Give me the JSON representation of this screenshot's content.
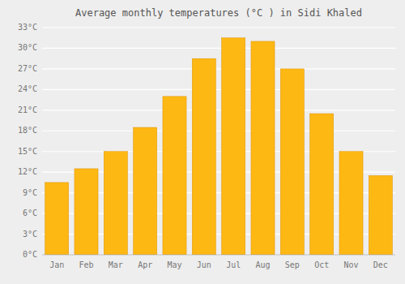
{
  "chart_data": {
    "type": "bar",
    "title": "Average monthly temperatures (°C ) in Sidi Khaled",
    "categories": [
      "Jan",
      "Feb",
      "Mar",
      "Apr",
      "May",
      "Jun",
      "Jul",
      "Aug",
      "Sep",
      "Oct",
      "Nov",
      "Dec"
    ],
    "values": [
      10.5,
      12.5,
      15.0,
      18.5,
      23.0,
      28.5,
      31.5,
      31.0,
      27.0,
      20.5,
      15.0,
      11.5
    ],
    "color": "#FDB813",
    "ylim": [
      0,
      33
    ],
    "yticks": [
      {
        "value": 0,
        "label": "0°C"
      },
      {
        "value": 3,
        "label": "3°C"
      },
      {
        "value": 6,
        "label": "6°C"
      },
      {
        "value": 9,
        "label": "9°C"
      },
      {
        "value": 12,
        "label": "12°C"
      },
      {
        "value": 15,
        "label": "15°C"
      },
      {
        "value": 18,
        "label": "18°C"
      },
      {
        "value": 21,
        "label": "21°C"
      },
      {
        "value": 24,
        "label": "24°C"
      },
      {
        "value": 27,
        "label": "27°C"
      },
      {
        "value": 30,
        "label": "30°C"
      },
      {
        "value": 33,
        "label": "33°C"
      }
    ],
    "grid": true
  }
}
